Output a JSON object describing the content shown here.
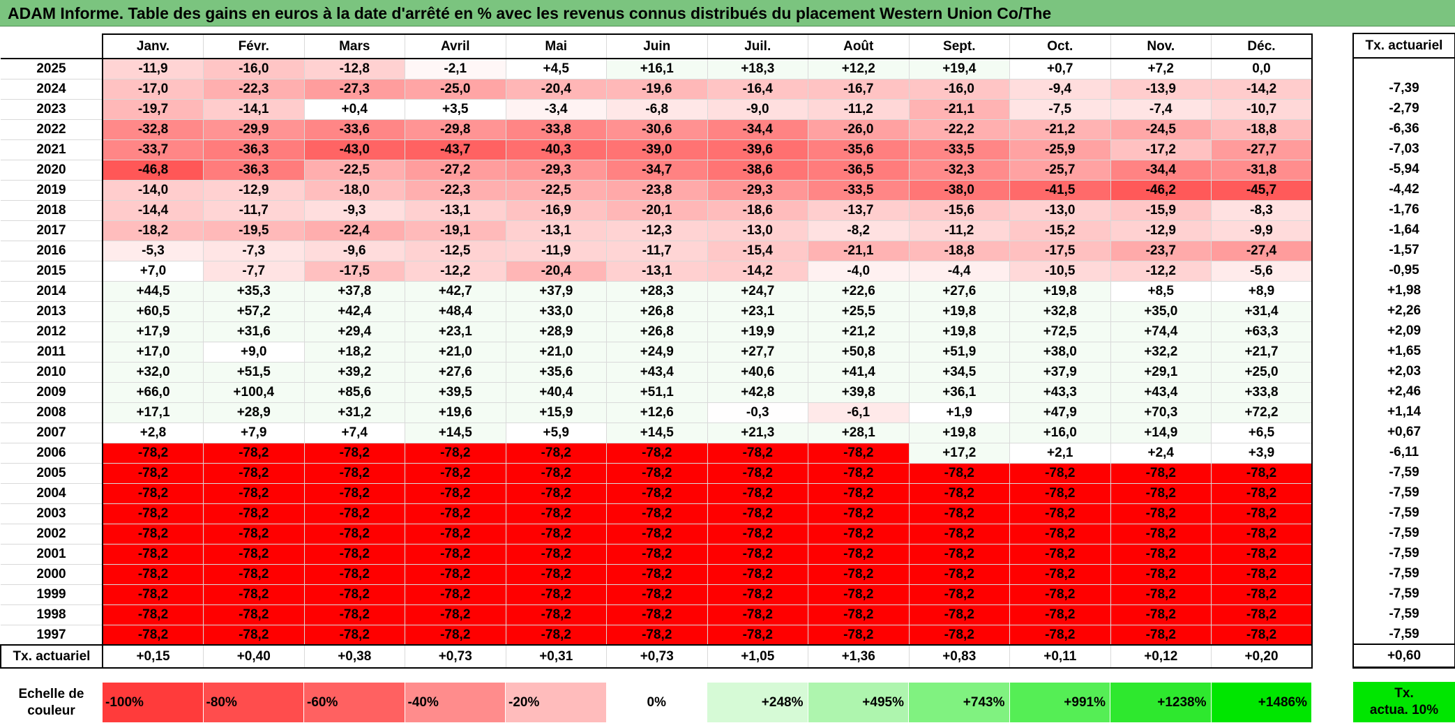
{
  "title": "ADAM Informe. Table des gains en euros à la date d'arrêté en % avec les revenus connus distribués du placement Western Union Co/The",
  "months": [
    "Janv.",
    "Févr.",
    "Mars",
    "Avril",
    "Mai",
    "Juin",
    "Juil.",
    "Août",
    "Sept.",
    "Oct.",
    "Nov.",
    "Déc."
  ],
  "tx_header": "Tx. actuariel",
  "rows": [
    {
      "year": "2025",
      "values": [
        "-11,9",
        "-16,0",
        "-12,8",
        "-2,1",
        "+4,5",
        "+16,1",
        "+18,3",
        "+12,2",
        "+19,4",
        "+0,7",
        "+7,2",
        "0,0"
      ],
      "tx": ""
    },
    {
      "year": "2024",
      "values": [
        "-17,0",
        "-22,3",
        "-27,3",
        "-25,0",
        "-20,4",
        "-19,6",
        "-16,4",
        "-16,7",
        "-16,0",
        "-9,4",
        "-13,9",
        "-14,2"
      ],
      "tx": "-7,39"
    },
    {
      "year": "2023",
      "values": [
        "-19,7",
        "-14,1",
        "+0,4",
        "+3,5",
        "-3,4",
        "-6,8",
        "-9,0",
        "-11,2",
        "-21,1",
        "-7,5",
        "-7,4",
        "-10,7"
      ],
      "tx": "-2,79"
    },
    {
      "year": "2022",
      "values": [
        "-32,8",
        "-29,9",
        "-33,6",
        "-29,8",
        "-33,8",
        "-30,6",
        "-34,4",
        "-26,0",
        "-22,2",
        "-21,2",
        "-24,5",
        "-18,8"
      ],
      "tx": "-6,36"
    },
    {
      "year": "2021",
      "values": [
        "-33,7",
        "-36,3",
        "-43,0",
        "-43,7",
        "-40,3",
        "-39,0",
        "-39,6",
        "-35,6",
        "-33,5",
        "-25,9",
        "-17,2",
        "-27,7"
      ],
      "tx": "-7,03"
    },
    {
      "year": "2020",
      "values": [
        "-46,8",
        "-36,3",
        "-22,5",
        "-27,2",
        "-29,3",
        "-34,7",
        "-38,6",
        "-36,5",
        "-32,3",
        "-25,7",
        "-34,4",
        "-31,8"
      ],
      "tx": "-5,94"
    },
    {
      "year": "2019",
      "values": [
        "-14,0",
        "-12,9",
        "-18,0",
        "-22,3",
        "-22,5",
        "-23,8",
        "-29,3",
        "-33,5",
        "-38,0",
        "-41,5",
        "-46,2",
        "-45,7"
      ],
      "tx": "-4,42"
    },
    {
      "year": "2018",
      "values": [
        "-14,4",
        "-11,7",
        "-9,3",
        "-13,1",
        "-16,9",
        "-20,1",
        "-18,6",
        "-13,7",
        "-15,6",
        "-13,0",
        "-15,9",
        "-8,3"
      ],
      "tx": "-1,76"
    },
    {
      "year": "2017",
      "values": [
        "-18,2",
        "-19,5",
        "-22,4",
        "-19,1",
        "-13,1",
        "-12,3",
        "-13,0",
        "-8,2",
        "-11,2",
        "-15,2",
        "-12,9",
        "-9,9"
      ],
      "tx": "-1,64"
    },
    {
      "year": "2016",
      "values": [
        "-5,3",
        "-7,3",
        "-9,6",
        "-12,5",
        "-11,9",
        "-11,7",
        "-15,4",
        "-21,1",
        "-18,8",
        "-17,5",
        "-23,7",
        "-27,4"
      ],
      "tx": "-1,57"
    },
    {
      "year": "2015",
      "values": [
        "+7,0",
        "-7,7",
        "-17,5",
        "-12,2",
        "-20,4",
        "-13,1",
        "-14,2",
        "-4,0",
        "-4,4",
        "-10,5",
        "-12,2",
        "-5,6"
      ],
      "tx": "-0,95"
    },
    {
      "year": "2014",
      "values": [
        "+44,5",
        "+35,3",
        "+37,8",
        "+42,7",
        "+37,9",
        "+28,3",
        "+24,7",
        "+22,6",
        "+27,6",
        "+19,8",
        "+8,5",
        "+8,9"
      ],
      "tx": "+1,98"
    },
    {
      "year": "2013",
      "values": [
        "+60,5",
        "+57,2",
        "+42,4",
        "+48,4",
        "+33,0",
        "+26,8",
        "+23,1",
        "+25,5",
        "+19,8",
        "+32,8",
        "+35,0",
        "+31,4"
      ],
      "tx": "+2,26"
    },
    {
      "year": "2012",
      "values": [
        "+17,9",
        "+31,6",
        "+29,4",
        "+23,1",
        "+28,9",
        "+26,8",
        "+19,9",
        "+21,2",
        "+19,8",
        "+72,5",
        "+74,4",
        "+63,3"
      ],
      "tx": "+2,09"
    },
    {
      "year": "2011",
      "values": [
        "+17,0",
        "+9,0",
        "+18,2",
        "+21,0",
        "+21,0",
        "+24,9",
        "+27,7",
        "+50,8",
        "+51,9",
        "+38,0",
        "+32,2",
        "+21,7"
      ],
      "tx": "+1,65"
    },
    {
      "year": "2010",
      "values": [
        "+32,0",
        "+51,5",
        "+39,2",
        "+27,6",
        "+35,6",
        "+43,4",
        "+40,6",
        "+41,4",
        "+34,5",
        "+37,9",
        "+29,1",
        "+25,0"
      ],
      "tx": "+2,03"
    },
    {
      "year": "2009",
      "values": [
        "+66,0",
        "+100,4",
        "+85,6",
        "+39,5",
        "+40,4",
        "+51,1",
        "+42,8",
        "+39,8",
        "+36,1",
        "+43,3",
        "+43,4",
        "+33,8"
      ],
      "tx": "+2,46"
    },
    {
      "year": "2008",
      "values": [
        "+17,1",
        "+28,9",
        "+31,2",
        "+19,6",
        "+15,9",
        "+12,6",
        "-0,3",
        "-6,1",
        "+1,9",
        "+47,9",
        "+70,3",
        "+72,2"
      ],
      "tx": "+1,14"
    },
    {
      "year": "2007",
      "values": [
        "+2,8",
        "+7,9",
        "+7,4",
        "+14,5",
        "+5,9",
        "+14,5",
        "+21,3",
        "+28,1",
        "+19,8",
        "+16,0",
        "+14,9",
        "+6,5"
      ],
      "tx": "+0,67"
    },
    {
      "year": "2006",
      "values": [
        "-78,2",
        "-78,2",
        "-78,2",
        "-78,2",
        "-78,2",
        "-78,2",
        "-78,2",
        "-78,2",
        "+17,2",
        "+2,1",
        "+2,4",
        "+3,9"
      ],
      "tx": "-6,11"
    },
    {
      "year": "2005",
      "values": [
        "-78,2",
        "-78,2",
        "-78,2",
        "-78,2",
        "-78,2",
        "-78,2",
        "-78,2",
        "-78,2",
        "-78,2",
        "-78,2",
        "-78,2",
        "-78,2"
      ],
      "tx": "-7,59"
    },
    {
      "year": "2004",
      "values": [
        "-78,2",
        "-78,2",
        "-78,2",
        "-78,2",
        "-78,2",
        "-78,2",
        "-78,2",
        "-78,2",
        "-78,2",
        "-78,2",
        "-78,2",
        "-78,2"
      ],
      "tx": "-7,59"
    },
    {
      "year": "2003",
      "values": [
        "-78,2",
        "-78,2",
        "-78,2",
        "-78,2",
        "-78,2",
        "-78,2",
        "-78,2",
        "-78,2",
        "-78,2",
        "-78,2",
        "-78,2",
        "-78,2"
      ],
      "tx": "-7,59"
    },
    {
      "year": "2002",
      "values": [
        "-78,2",
        "-78,2",
        "-78,2",
        "-78,2",
        "-78,2",
        "-78,2",
        "-78,2",
        "-78,2",
        "-78,2",
        "-78,2",
        "-78,2",
        "-78,2"
      ],
      "tx": "-7,59"
    },
    {
      "year": "2001",
      "values": [
        "-78,2",
        "-78,2",
        "-78,2",
        "-78,2",
        "-78,2",
        "-78,2",
        "-78,2",
        "-78,2",
        "-78,2",
        "-78,2",
        "-78,2",
        "-78,2"
      ],
      "tx": "-7,59"
    },
    {
      "year": "2000",
      "values": [
        "-78,2",
        "-78,2",
        "-78,2",
        "-78,2",
        "-78,2",
        "-78,2",
        "-78,2",
        "-78,2",
        "-78,2",
        "-78,2",
        "-78,2",
        "-78,2"
      ],
      "tx": "-7,59"
    },
    {
      "year": "1999",
      "values": [
        "-78,2",
        "-78,2",
        "-78,2",
        "-78,2",
        "-78,2",
        "-78,2",
        "-78,2",
        "-78,2",
        "-78,2",
        "-78,2",
        "-78,2",
        "-78,2"
      ],
      "tx": "-7,59"
    },
    {
      "year": "1998",
      "values": [
        "-78,2",
        "-78,2",
        "-78,2",
        "-78,2",
        "-78,2",
        "-78,2",
        "-78,2",
        "-78,2",
        "-78,2",
        "-78,2",
        "-78,2",
        "-78,2"
      ],
      "tx": "-7,59"
    },
    {
      "year": "1997",
      "values": [
        "-78,2",
        "-78,2",
        "-78,2",
        "-78,2",
        "-78,2",
        "-78,2",
        "-78,2",
        "-78,2",
        "-78,2",
        "-78,2",
        "-78,2",
        "-78,2"
      ],
      "tx": "-7,59"
    }
  ],
  "footer": {
    "label": "Tx. actuariel",
    "values": [
      "+0,15",
      "+0,40",
      "+0,38",
      "+0,73",
      "+0,31",
      "+0,73",
      "+1,05",
      "+1,36",
      "+0,83",
      "+0,11",
      "+0,12",
      "+0,20"
    ],
    "total": "+0,60"
  },
  "scale": {
    "label": "Echelle de couleur",
    "steps": [
      {
        "label": "-100%",
        "color": "#ff3b3b"
      },
      {
        "label": "-80%",
        "color": "#ff4d4d"
      },
      {
        "label": "-60%",
        "color": "#ff6161"
      },
      {
        "label": "-40%",
        "color": "#ff8c8c"
      },
      {
        "label": "-20%",
        "color": "#ffbcbc"
      },
      {
        "label": "0%",
        "color": "#ffffff"
      },
      {
        "label": "+248%",
        "color": "#d6fad6"
      },
      {
        "label": "+495%",
        "color": "#aef5ae"
      },
      {
        "label": "+743%",
        "color": "#80f280"
      },
      {
        "label": "+991%",
        "color": "#55ee55"
      },
      {
        "label": "+1238%",
        "color": "#2ee82e"
      },
      {
        "label": "+1486%",
        "color": "#00e600"
      }
    ],
    "note": "Tx.\nactua. 10%"
  },
  "colors": {
    "title_bg": "#7bc47f",
    "full_loss": "#ff0000",
    "neutral": "#ffffff",
    "positive_light": "#f4fcf4"
  }
}
